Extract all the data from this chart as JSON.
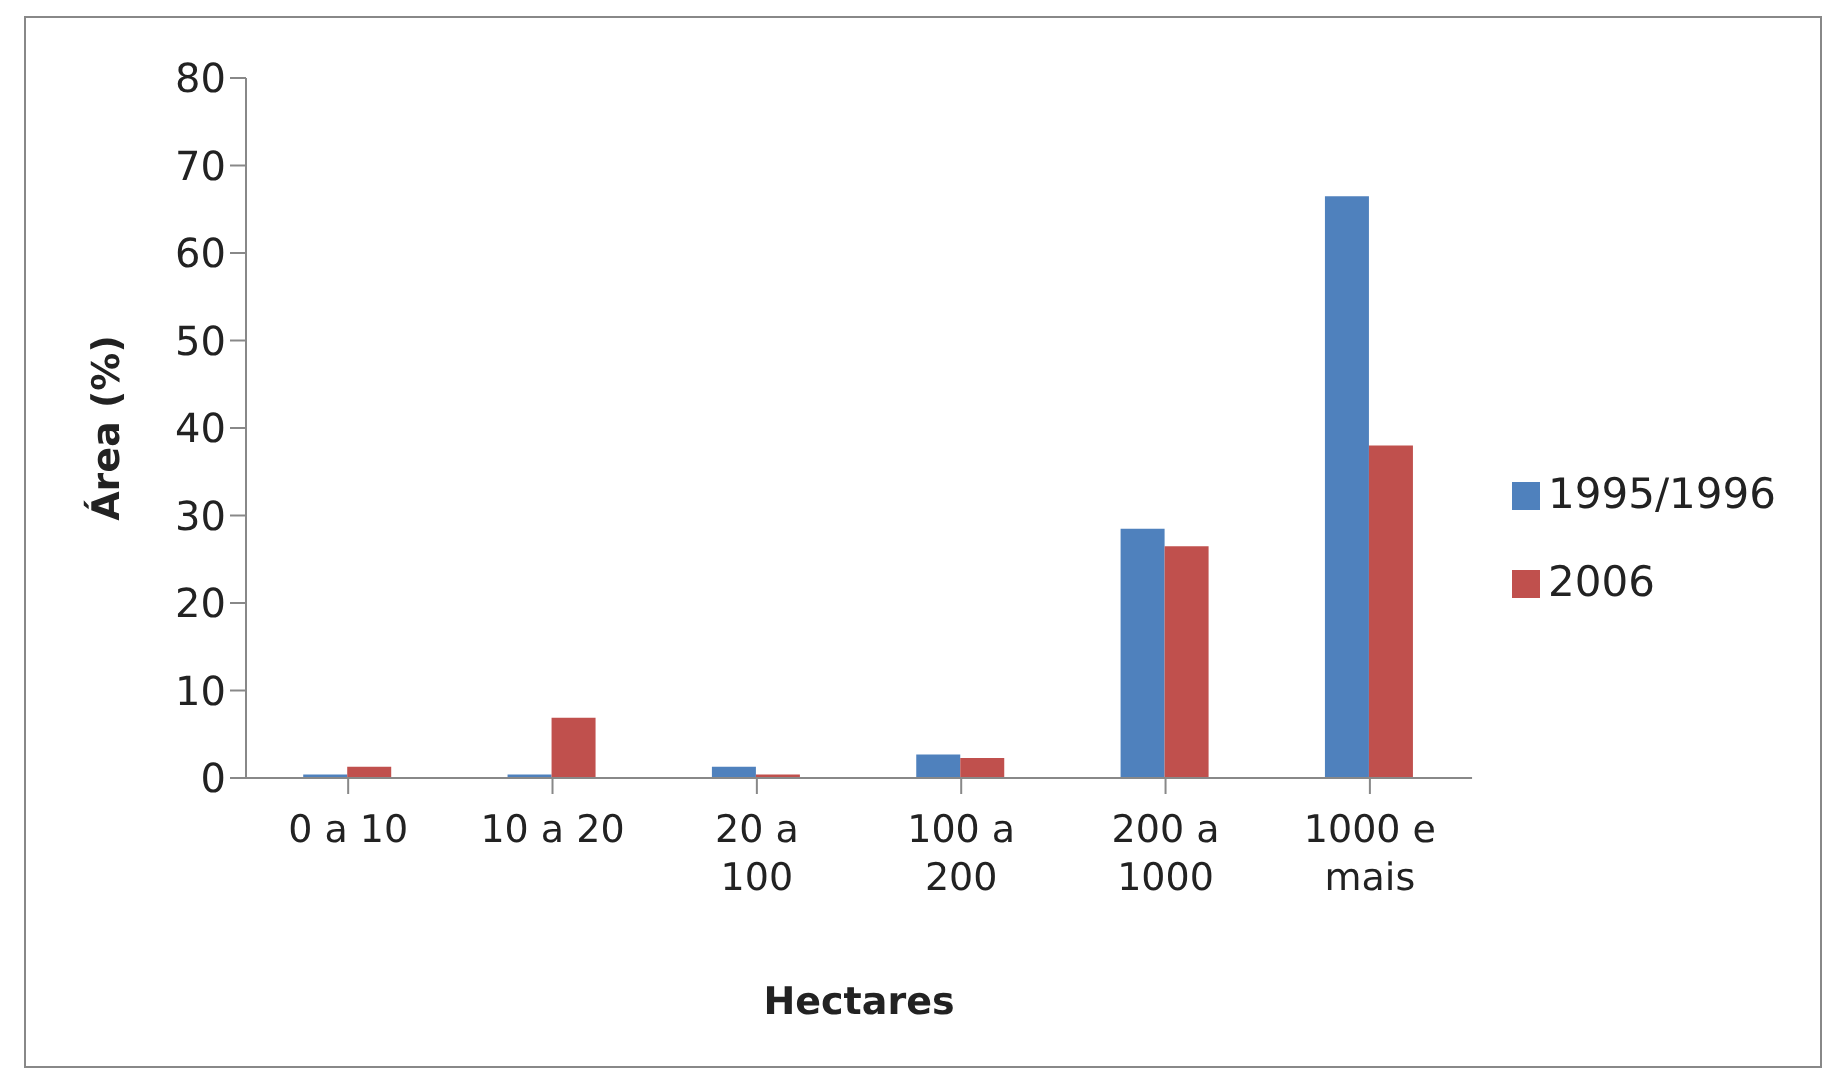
{
  "chart_data": {
    "type": "bar",
    "xlabel": "Hectares",
    "ylabel": "Área (%)",
    "categories": [
      "0 a 10",
      "10 a 20",
      "20 a 100",
      "100 a 200",
      "200 a 1000",
      "1000 e mais"
    ],
    "series": [
      {
        "name": "1995/1996",
        "color": "#4f81bd",
        "values": [
          0.4,
          0.4,
          1.3,
          2.7,
          28.5,
          66.5
        ]
      },
      {
        "name": "2006",
        "color": "#c0504d",
        "values": [
          1.3,
          6.9,
          0.4,
          2.3,
          26.5,
          38
        ]
      }
    ],
    "ylim": [
      0,
      80
    ],
    "yticks": [
      0,
      10,
      20,
      30,
      40,
      50,
      60,
      70,
      80
    ],
    "grid": false,
    "legend": "right"
  }
}
